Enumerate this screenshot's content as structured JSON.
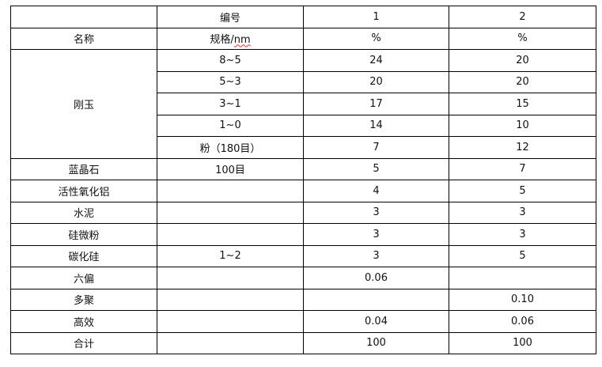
{
  "header": {
    "code_label": "编号",
    "name_label": "名称",
    "spec_label_prefix": "规格/",
    "spec_label_unit": "nm",
    "sample1": "1",
    "sample2": "2",
    "unit1": "%",
    "unit2": "%"
  },
  "corundum_group": "刚玉",
  "rows": [
    {
      "name": "",
      "spec": "8~5",
      "v1": "24",
      "v2": "20"
    },
    {
      "name": "",
      "spec": "5~3",
      "v1": "20",
      "v2": "20"
    },
    {
      "name": "",
      "spec": "3~1",
      "v1": "17",
      "v2": "15"
    },
    {
      "name": "",
      "spec": "1~0",
      "v1": "14",
      "v2": "10"
    },
    {
      "name": "",
      "spec": "粉（180目）",
      "v1": "7",
      "v2": "12"
    },
    {
      "name": "蓝晶石",
      "spec": "100目",
      "v1": "5",
      "v2": "7"
    },
    {
      "name": "活性氧化铝",
      "spec": "",
      "v1": "4",
      "v2": "5"
    },
    {
      "name": "水泥",
      "spec": "",
      "v1": "3",
      "v2": "3"
    },
    {
      "name": "硅微粉",
      "spec": "",
      "v1": "3",
      "v2": "3"
    },
    {
      "name": "碳化硅",
      "spec": "1~2",
      "v1": "3",
      "v2": "5"
    },
    {
      "name": "六偏",
      "spec": "",
      "v1": "0.06",
      "v2": ""
    },
    {
      "name": "多聚",
      "spec": "",
      "v1": "",
      "v2": "0.10"
    },
    {
      "name": "高效",
      "spec": "",
      "v1": "0.04",
      "v2": "0.06"
    },
    {
      "name": "合计",
      "spec": "",
      "v1": "100",
      "v2": "100"
    }
  ]
}
